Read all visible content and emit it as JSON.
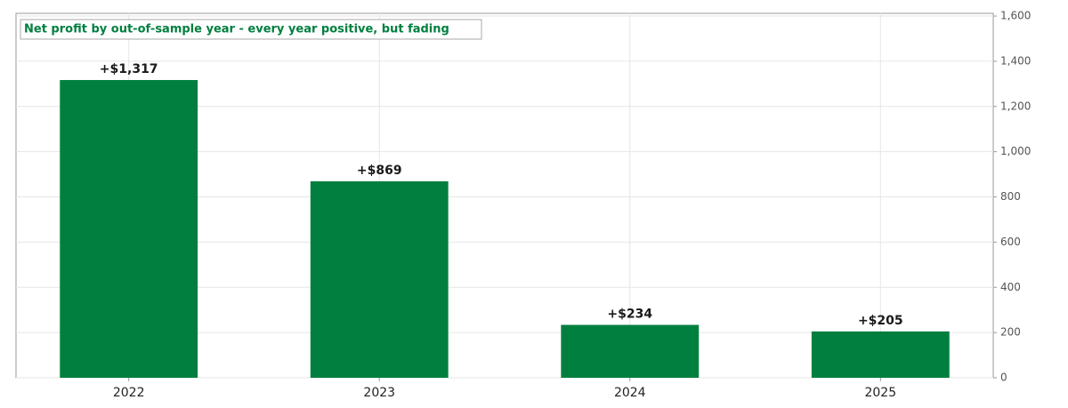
{
  "chart_data": {
    "type": "bar",
    "title": "Net profit by out-of-sample year - every year positive, but fading",
    "categories": [
      "2022",
      "2023",
      "2024",
      "2025"
    ],
    "values": [
      1317,
      869,
      234,
      205
    ],
    "value_labels": [
      "+$1,317",
      "+$869",
      "+$234",
      "+$205"
    ],
    "color": "#007f3f",
    "ylim": [
      0,
      1612
    ],
    "yticks": [
      0,
      200,
      400,
      600,
      800,
      {
        "value": 1000,
        "label": "1,000"
      },
      {
        "value": 1200,
        "label": "1,200"
      },
      {
        "value": 1400,
        "label": "1,400"
      },
      {
        "value": 1600,
        "label": "1,600"
      }
    ],
    "grid": true
  }
}
